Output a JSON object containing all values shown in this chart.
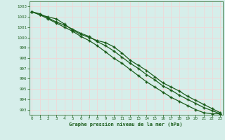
{
  "xlabel": "Graphe pression niveau de la mer (hPa)",
  "ylim": [
    992.5,
    1003.5
  ],
  "xlim": [
    -0.3,
    23.3
  ],
  "yticks": [
    993,
    994,
    995,
    996,
    997,
    998,
    999,
    1000,
    1001,
    1002,
    1003
  ],
  "xticks": [
    0,
    1,
    2,
    3,
    4,
    5,
    6,
    7,
    8,
    9,
    10,
    11,
    12,
    13,
    14,
    15,
    16,
    17,
    18,
    19,
    20,
    21,
    22,
    23
  ],
  "bg_color": "#d6eeea",
  "grid_color_major": "#f0d8d8",
  "grid_color_minor": "#e8e0e0",
  "line_color": "#1a5c1a",
  "marker_color": "#1a5c1a",
  "line1": [
    1002.5,
    1002.2,
    1002.0,
    1001.8,
    1001.3,
    1000.7,
    1000.3,
    1000.0,
    999.7,
    999.5,
    999.1,
    998.5,
    997.8,
    997.3,
    996.8,
    996.2,
    995.6,
    995.2,
    994.8,
    994.3,
    993.9,
    993.5,
    993.1,
    992.7
  ],
  "line2": [
    1002.5,
    1002.3,
    1001.9,
    1001.5,
    1001.2,
    1000.8,
    1000.4,
    1000.1,
    999.6,
    999.2,
    998.7,
    998.1,
    997.5,
    997.0,
    996.4,
    995.9,
    995.3,
    994.9,
    994.4,
    994.0,
    993.6,
    993.2,
    992.9,
    992.6
  ],
  "line3": [
    1002.5,
    1002.2,
    1001.8,
    1001.4,
    1001.0,
    1000.6,
    1000.1,
    999.7,
    999.2,
    998.6,
    998.0,
    997.5,
    996.9,
    996.3,
    995.7,
    995.2,
    994.7,
    994.2,
    993.8,
    993.4,
    993.0,
    992.7,
    992.6,
    992.6
  ]
}
